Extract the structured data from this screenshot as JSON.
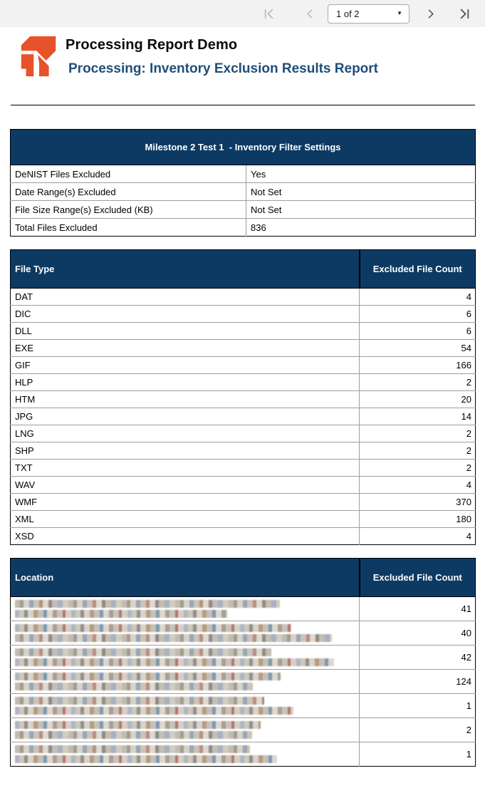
{
  "colors": {
    "navy": "#0d3a62",
    "orange": "#e8522b",
    "subtitle": "#1f4e79",
    "toolbar": "#f2f2f2",
    "grid": "#9e9e9e",
    "icon-disabled": "#b9b9b9",
    "icon-enabled": "#4a4a4a"
  },
  "pagination": {
    "page_label": "1 of 2",
    "icons": {
      "first_page": "chevron-bar-left",
      "previous_page": "chevron-left",
      "next_page": "chevron-right",
      "last_page": "chevron-bar-right",
      "dropdown_caret": "▼"
    }
  },
  "header": {
    "logo": "relativity-r-mark",
    "title": "Processing Report Demo",
    "subtitle": "Processing: Inventory Exclusion Results Report"
  },
  "settings_table": {
    "title": "Milestone 2 Test 1  - Inventory Filter Settings",
    "rows": [
      {
        "label": "DeNIST Files Excluded",
        "value": "Yes"
      },
      {
        "label": "Date Range(s) Excluded",
        "value": "Not Set"
      },
      {
        "label": "File Size Range(s) Excluded (KB)",
        "value": "Not Set"
      },
      {
        "label": "Total Files Excluded",
        "value": "836"
      }
    ]
  },
  "file_type_table": {
    "columns": [
      "File Type",
      "Excluded File Count"
    ],
    "rows": [
      {
        "file_type": "DAT",
        "count": 4
      },
      {
        "file_type": "DIC",
        "count": 6
      },
      {
        "file_type": "DLL",
        "count": 6
      },
      {
        "file_type": "EXE",
        "count": 54
      },
      {
        "file_type": "GIF",
        "count": 166
      },
      {
        "file_type": "HLP",
        "count": 2
      },
      {
        "file_type": "HTM",
        "count": 20
      },
      {
        "file_type": "JPG",
        "count": 14
      },
      {
        "file_type": "LNG",
        "count": 2
      },
      {
        "file_type": "SHP",
        "count": 2
      },
      {
        "file_type": "TXT",
        "count": 2
      },
      {
        "file_type": "WAV",
        "count": 4
      },
      {
        "file_type": "WMF",
        "count": 370
      },
      {
        "file_type": "XML",
        "count": 180
      },
      {
        "file_type": "XSD",
        "count": 4
      }
    ]
  },
  "location_table": {
    "columns": [
      "Location",
      "Excluded File Count"
    ],
    "note": "location paths are pixelated/redacted in source image",
    "rows": [
      {
        "redacted": true,
        "line_widths": [
          372,
          298
        ],
        "count": 41
      },
      {
        "redacted": true,
        "line_widths": [
          388,
          445
        ],
        "count": 40
      },
      {
        "redacted": true,
        "line_widths": [
          360,
          448
        ],
        "count": 42
      },
      {
        "redacted": true,
        "line_widths": [
          373,
          334
        ],
        "count": 124
      },
      {
        "redacted": true,
        "line_widths": [
          350,
          391
        ],
        "count": 1
      },
      {
        "redacted": true,
        "line_widths": [
          345,
          333
        ],
        "count": 2
      },
      {
        "redacted": true,
        "line_widths": [
          330,
          368
        ],
        "count": 1
      }
    ]
  }
}
